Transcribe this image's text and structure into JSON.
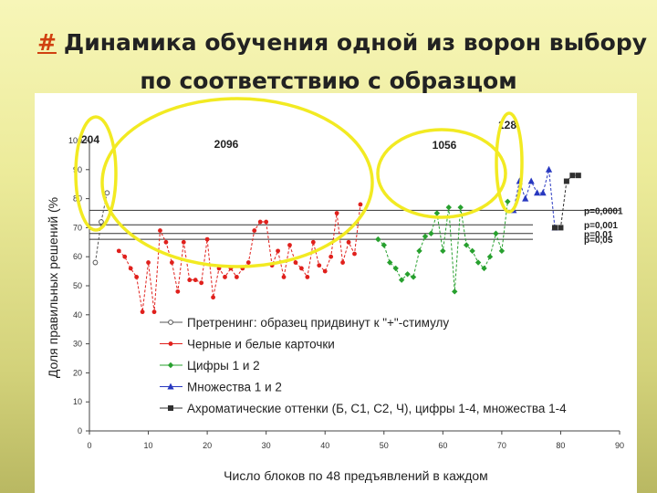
{
  "title": {
    "hash": "#",
    "line1": "Динамика обучения одной из ворон выбору",
    "line2": "по соответствию с образцом"
  },
  "chart_data": {
    "type": "line",
    "xlabel": "Число блоков по 48 предъявлений в каждом",
    "ylabel": "Доля правильных решений (%",
    "xlim": [
      0,
      90
    ],
    "ylim": [
      0,
      100
    ],
    "xticks": [
      0,
      10,
      20,
      30,
      40,
      50,
      60,
      70,
      80,
      90
    ],
    "yticks": [
      0,
      10,
      20,
      30,
      40,
      50,
      60,
      70,
      80,
      90,
      100
    ],
    "grid": false,
    "legend_position": "center-left",
    "series": [
      {
        "name": "Претренинг: образец придвинут к \"+\"-стимулу",
        "color": "#555555",
        "marker": "open-circle",
        "x": [
          1,
          2,
          3
        ],
        "y": [
          58,
          72,
          82
        ]
      },
      {
        "name": "Черные и белые карточки",
        "color": "#e0201c",
        "marker": "circle",
        "x": [
          5,
          6,
          7,
          8,
          9,
          10,
          11,
          12,
          13,
          14,
          15,
          16,
          17,
          18,
          19,
          20,
          21,
          22,
          23,
          24,
          25,
          26,
          27,
          28,
          29,
          30,
          31,
          32,
          33,
          34,
          35,
          36,
          37,
          38,
          39,
          40,
          41,
          42,
          43,
          44,
          45,
          46
        ],
        "y": [
          62,
          60,
          56,
          53,
          41,
          58,
          41,
          69,
          65,
          58,
          48,
          65,
          52,
          52,
          51,
          66,
          46,
          56,
          53,
          56,
          53,
          56,
          58,
          69,
          72,
          72,
          57,
          62,
          53,
          64,
          58,
          56,
          53,
          65,
          57,
          55,
          60,
          75,
          58,
          65,
          61,
          78
        ]
      },
      {
        "name": "Цифры 1 и 2",
        "color": "#27a02e",
        "marker": "diamond",
        "x": [
          49,
          50,
          51,
          52,
          53,
          54,
          55,
          56,
          57,
          58,
          59,
          60,
          61,
          62,
          63,
          64,
          65,
          66,
          67,
          68,
          69,
          70,
          71
        ],
        "y": [
          66,
          64,
          58,
          56,
          52,
          54,
          53,
          62,
          67,
          68,
          75,
          62,
          77,
          48,
          77,
          64,
          62,
          58,
          56,
          60,
          68,
          62,
          79
        ]
      },
      {
        "name": "Множества 1 и 2",
        "color": "#2838c0",
        "marker": "triangle",
        "x": [
          72,
          73,
          74,
          75,
          76,
          77,
          78,
          79
        ],
        "y": [
          76,
          86,
          80,
          86,
          82,
          82,
          90,
          70
        ]
      },
      {
        "name": "Ахроматические оттенки (Б, С1, С2, Ч), цифры 1-4, множества 1-4",
        "color": "#303030",
        "marker": "square",
        "x": [
          79,
          80,
          81,
          82,
          83
        ],
        "y": [
          70,
          70,
          86,
          88,
          88
        ]
      }
    ],
    "significance_lines": [
      {
        "label": "p=0,0001",
        "y": 76
      },
      {
        "label": "p=0,001",
        "y": 71
      },
      {
        "label": "p=0,01",
        "y": 68
      },
      {
        "label": "p=0,05",
        "y": 66
      }
    ],
    "annotations": [
      "204",
      "2096",
      "1056",
      "128"
    ]
  }
}
